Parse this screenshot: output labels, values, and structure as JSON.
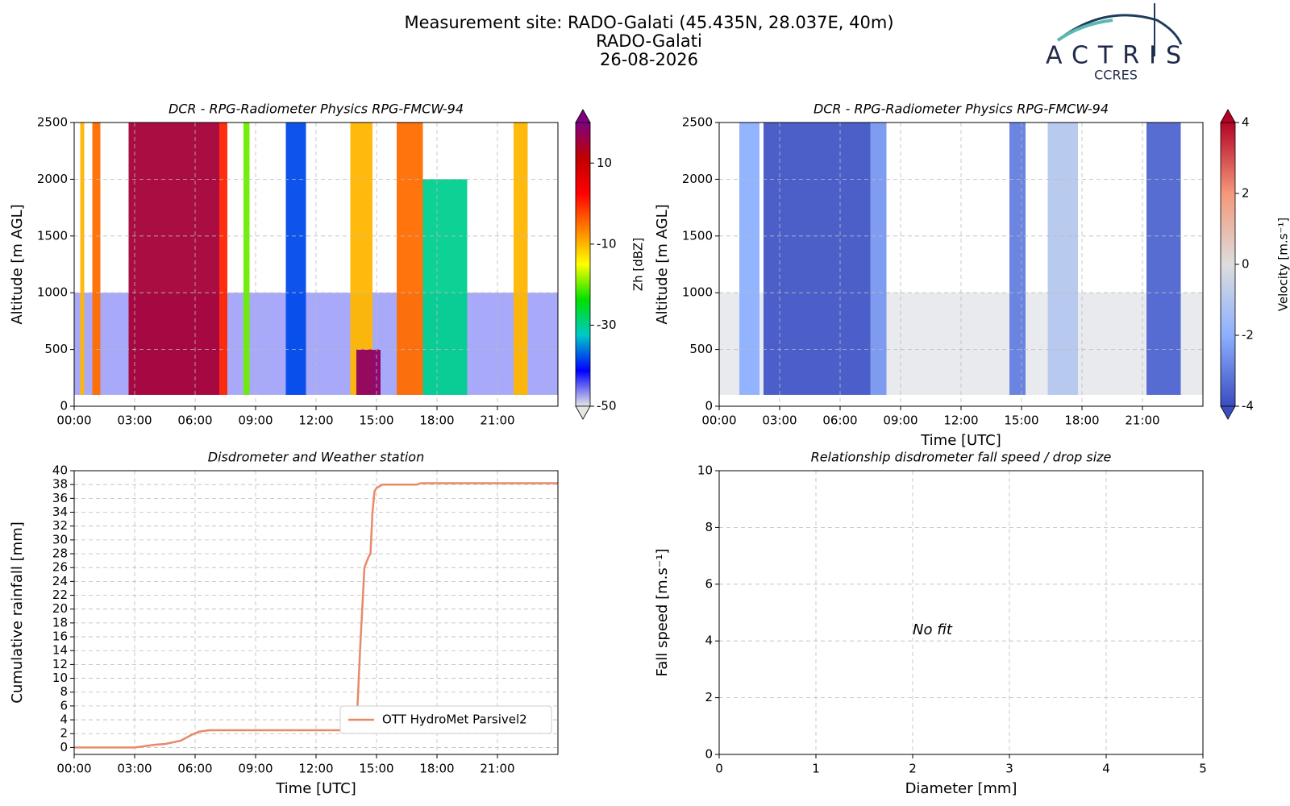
{
  "header": {
    "lines": [
      "Measurement site: RADO-Galati (45.435N, 28.037E, 40m)",
      "RADO-Galati",
      "26-08-2026"
    ]
  },
  "logo": {
    "name": "ACTRIS",
    "sub": "CCRES"
  },
  "chart_data": [
    {
      "type": "heatmap",
      "title": "DCR - RPG-Radiometer Physics RPG-FMCW-94",
      "ylabel": "Altitude [m AGL]",
      "xlim": [
        0,
        24
      ],
      "xticks": [
        {
          "value": 0,
          "label": "00:00"
        },
        {
          "value": 3,
          "label": "03:00"
        },
        {
          "value": 6,
          "label": "06:00"
        },
        {
          "value": 9,
          "label": "09:00"
        },
        {
          "value": 12,
          "label": "12:00"
        },
        {
          "value": 15,
          "label": "15:00"
        },
        {
          "value": 18,
          "label": "18:00"
        },
        {
          "value": 21,
          "label": "21:00"
        }
      ],
      "ylim": [
        0,
        2500
      ],
      "yticks": [
        0,
        500,
        1000,
        1500,
        2000,
        2500
      ],
      "grid": true,
      "range_start": 100,
      "colorbar_label": "Zh [dBZ]",
      "clim": [
        -50,
        20
      ],
      "cticks": [
        -50,
        -30,
        -10,
        10
      ],
      "colormap": [
        "#e6e6e6",
        "#0000ff",
        "#00c8c8",
        "#00e000",
        "#ffff00",
        "#ff7f00",
        "#ff0000",
        "#c00000",
        "#800080"
      ],
      "bands": [
        {
          "x": [
            0,
            24
          ],
          "top": 1000,
          "value": -45
        },
        {
          "x": [
            0.3,
            0.5
          ],
          "top": 2500,
          "value": -10
        },
        {
          "x": [
            0.9,
            1.3
          ],
          "top": 2500,
          "value": -5
        },
        {
          "x": [
            2.7,
            7.2
          ],
          "top": 2500,
          "value": 15
        },
        {
          "x": [
            7.2,
            7.6
          ],
          "top": 2500,
          "value": 0
        },
        {
          "x": [
            8.4,
            8.7
          ],
          "top": 2500,
          "value": -20
        },
        {
          "x": [
            10.5,
            11.5
          ],
          "top": 2500,
          "value": -38
        },
        {
          "x": [
            13.7,
            14.8
          ],
          "top": 2500,
          "value": -10
        },
        {
          "x": [
            14.0,
            15.2
          ],
          "top": 500,
          "value": 18
        },
        {
          "x": [
            16.0,
            17.3
          ],
          "top": 2500,
          "value": -5
        },
        {
          "x": [
            17.3,
            19.5
          ],
          "top": 2000,
          "value": -30
        },
        {
          "x": [
            21.8,
            22.5
          ],
          "top": 2500,
          "value": -10
        }
      ]
    },
    {
      "type": "heatmap",
      "title": "DCR - RPG-Radiometer Physics RPG-FMCW-94",
      "ylabel": "Altitude [m AGL]",
      "xlabel": "Time [UTC]",
      "xlim": [
        0,
        24
      ],
      "xticks": [
        {
          "value": 0,
          "label": "00:00"
        },
        {
          "value": 3,
          "label": "03:00"
        },
        {
          "value": 6,
          "label": "06:00"
        },
        {
          "value": 9,
          "label": "09:00"
        },
        {
          "value": 12,
          "label": "12:00"
        },
        {
          "value": 15,
          "label": "15:00"
        },
        {
          "value": 18,
          "label": "18:00"
        },
        {
          "value": 21,
          "label": "21:00"
        }
      ],
      "ylim": [
        0,
        2500
      ],
      "yticks": [
        0,
        500,
        1000,
        1500,
        2000,
        2500
      ],
      "grid": true,
      "range_start": 100,
      "colorbar_label": "Velocity [m.s⁻¹]",
      "clim": [
        -4,
        4
      ],
      "cticks": [
        -4,
        -2,
        0,
        2,
        4
      ],
      "colormap": [
        "#3a4cc0",
        "#8db0fe",
        "#dddddd",
        "#f4987a",
        "#b40426"
      ],
      "bands": [
        {
          "x": [
            0,
            24
          ],
          "top": 1000,
          "value": -0.2
        },
        {
          "x": [
            1.0,
            2.0
          ],
          "top": 2500,
          "value": -2
        },
        {
          "x": [
            2.2,
            7.5
          ],
          "top": 2500,
          "value": -3.8
        },
        {
          "x": [
            7.5,
            8.3
          ],
          "top": 2500,
          "value": -2.5
        },
        {
          "x": [
            14.4,
            15.2
          ],
          "top": 2500,
          "value": -3
        },
        {
          "x": [
            16.3,
            17.8
          ],
          "top": 2500,
          "value": -1
        },
        {
          "x": [
            21.2,
            22.9
          ],
          "top": 2500,
          "value": -3.5
        }
      ]
    },
    {
      "type": "line",
      "title": "Disdrometer and Weather station",
      "ylabel": "Cumulative rainfall [mm]",
      "xlabel": "Time [UTC]",
      "xlim": [
        0,
        24
      ],
      "xticks": [
        {
          "value": 0,
          "label": "00:00"
        },
        {
          "value": 3,
          "label": "03:00"
        },
        {
          "value": 6,
          "label": "06:00"
        },
        {
          "value": 9,
          "label": "09:00"
        },
        {
          "value": 12,
          "label": "12:00"
        },
        {
          "value": 15,
          "label": "15:00"
        },
        {
          "value": 18,
          "label": "18:00"
        },
        {
          "value": 21,
          "label": "21:00"
        }
      ],
      "ylim": [
        -1,
        40
      ],
      "yticks": [
        0,
        2,
        4,
        6,
        8,
        10,
        12,
        14,
        16,
        18,
        20,
        22,
        24,
        26,
        28,
        30,
        32,
        34,
        36,
        38,
        40
      ],
      "grid": true,
      "legend": "lower right",
      "x": [
        0,
        3,
        3.5,
        4,
        4.5,
        5,
        5.3,
        5.8,
        6.2,
        6.7,
        7,
        14,
        14.2,
        14.4,
        14.6,
        14.7,
        14.8,
        14.9,
        15,
        15.3,
        16,
        17,
        17.2,
        24
      ],
      "series": [
        {
          "name": "OTT HydroMet Parsivel2",
          "color": "#e8896a",
          "values": [
            0,
            0,
            0.2,
            0.4,
            0.5,
            0.8,
            1,
            1.8,
            2.3,
            2.5,
            2.5,
            2.5,
            15,
            26,
            27.5,
            28,
            34,
            37,
            37.5,
            38,
            38,
            38,
            38.2,
            38.2
          ]
        }
      ]
    },
    {
      "type": "scatter",
      "title": "Relationship disdrometer fall speed / drop size",
      "ylabel": "Fall speed [m.s⁻¹]",
      "xlabel": "Diameter [mm]",
      "xlim": [
        0,
        5
      ],
      "xticks": [
        0,
        1,
        2,
        3,
        4,
        5
      ],
      "ylim": [
        0,
        10
      ],
      "yticks": [
        0,
        2,
        4,
        6,
        8,
        10
      ],
      "grid": true,
      "annotation": "No fit"
    }
  ]
}
